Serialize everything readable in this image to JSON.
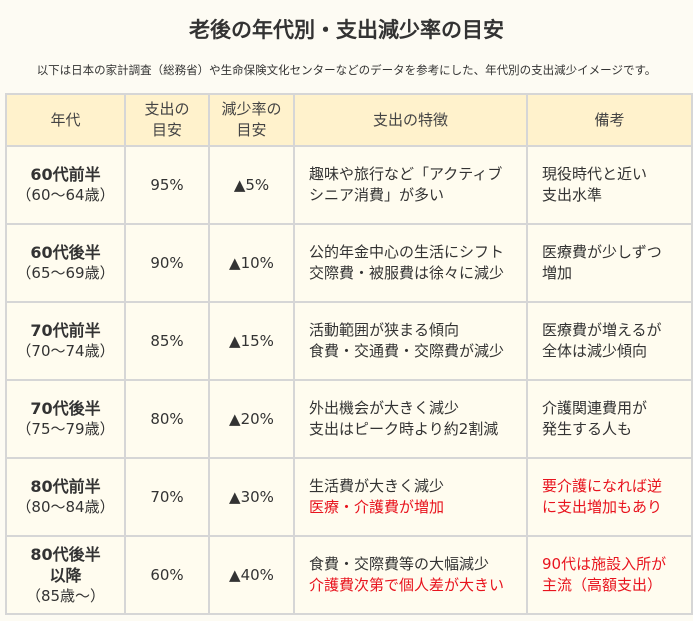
{
  "title": "老後の年代別・支出減少率の目安",
  "subtitle": "以下は日本の家計調査（総務省）や生命保険文化センターなどのデータを参考にした、年代別の支出減少イメージです。",
  "headers": [
    {
      "l1": "年代",
      "l2": ""
    },
    {
      "l1": "支出の",
      "l2": "目安"
    },
    {
      "l1": "減少率の",
      "l2": "目安"
    },
    {
      "l1": "支出の特徴",
      "l2": ""
    },
    {
      "l1": "備考",
      "l2": ""
    }
  ],
  "rows": [
    {
      "age": "60代前半",
      "age2": "",
      "range": "（60～64歳）",
      "ratio": "95%",
      "decrease": "▲5%",
      "feature1": "趣味や旅行など「アクティブ",
      "feature2": "シニア消費」が多い",
      "note1": "現役時代と近い",
      "note2": "支出水準"
    },
    {
      "age": "60代後半",
      "age2": "",
      "range": "（65～69歳）",
      "ratio": "90%",
      "decrease": "▲10%",
      "feature1": "公的年金中心の生活にシフト",
      "feature2": "交際費・被服費は徐々に減少",
      "note1": "医療費が少しずつ",
      "note2": "増加"
    },
    {
      "age": "70代前半",
      "age2": "",
      "range": "（70～74歳）",
      "ratio": "85%",
      "decrease": "▲15%",
      "feature1": "活動範囲が狭まる傾向",
      "feature2": "食費・交通費・交際費が減少",
      "note1": "医療費が増えるが",
      "note2": "全体は減少傾向"
    },
    {
      "age": "70代後半",
      "age2": "",
      "range": "（75～79歳）",
      "ratio": "80%",
      "decrease": "▲20%",
      "feature1": "外出機会が大きく減少",
      "feature2": "支出はピーク時より約2割減",
      "note1": "介護関連費用が",
      "note2": "発生する人も"
    },
    {
      "age": "80代前半",
      "age2": "",
      "range": "（80～84歳）",
      "ratio": "70%",
      "decrease": "▲30%",
      "feature1": "生活費が大きく減少",
      "feature2": "医療・介護費が増加",
      "note1": "要介護になれば逆",
      "note2": "に支出増加もあり"
    },
    {
      "age": "80代後半",
      "age2": "以降",
      "range": "（85歳～）",
      "ratio": "60%",
      "decrease": "▲40%",
      "feature1": "食費・交際費等の大幅減少",
      "feature2": "介護費次第で個人差が大きい",
      "note1": "90代は施設入所が",
      "note2": "主流（高額支出）"
    }
  ],
  "colors": {
    "header_bg": "#fff2cc",
    "cell_bg": "#fffcef",
    "highlight": "#e8141e",
    "border": "#d6d6d6"
  }
}
